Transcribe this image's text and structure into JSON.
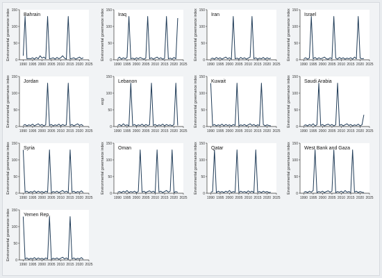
{
  "figure": {
    "background": "#f1f3f5",
    "panel_background": "#ffffff",
    "line_color": "#1f3b57",
    "axis_color": "#333333"
  },
  "chart_data": [
    {
      "type": "line",
      "title": "Bahrain",
      "ylabel": "Environmental governance index",
      "xlim": [
        1988,
        2025
      ],
      "ylim": [
        0,
        150
      ],
      "xticks": [
        1990,
        1995,
        2000,
        2005,
        2010,
        2015,
        2020,
        2025
      ],
      "yticks": [
        0,
        50,
        100,
        150
      ],
      "x": [
        1990,
        1991,
        1992,
        1993,
        1994,
        1995,
        1996,
        1997,
        1998,
        1999,
        2000,
        2001,
        2002,
        2003,
        2004,
        2005,
        2006,
        2007,
        2008,
        2009,
        2010,
        2011,
        2012,
        2013,
        2014,
        2015,
        2016,
        2017,
        2018,
        2019,
        2020,
        2021,
        2022
      ],
      "y": [
        12,
        130,
        3,
        4,
        3,
        6,
        2,
        7,
        3,
        12,
        5,
        8,
        3,
        130,
        3,
        4,
        6,
        2,
        7,
        3,
        6,
        12,
        5,
        2,
        130,
        3,
        4,
        6,
        2,
        5,
        8,
        3,
        6
      ]
    },
    {
      "type": "line",
      "title": "Iraq",
      "ylabel": "Environmental governance index",
      "xlim": [
        1988,
        2025
      ],
      "ylim": [
        0,
        150
      ],
      "xticks": [
        1990,
        1995,
        2000,
        2005,
        2010,
        2015,
        2020,
        2025
      ],
      "yticks": [
        0,
        50,
        100,
        150
      ],
      "x": [
        1990,
        1991,
        1992,
        1993,
        1994,
        1995,
        1996,
        1997,
        1998,
        1999,
        2000,
        2001,
        2002,
        2003,
        2004,
        2005,
        2006,
        2007,
        2008,
        2009,
        2010,
        2011,
        2012,
        2013,
        2014,
        2015,
        2016,
        2017,
        2018,
        2019,
        2020,
        2021,
        2022
      ],
      "y": [
        3,
        8,
        2,
        6,
        3,
        7,
        130,
        3,
        5,
        2,
        6,
        3,
        7,
        4,
        2,
        5,
        130,
        3,
        6,
        2,
        5,
        8,
        3,
        6,
        2,
        4,
        130,
        3,
        5,
        2,
        7,
        3,
        125
      ]
    },
    {
      "type": "line",
      "title": "Iran",
      "ylabel": "Environmental governance index",
      "xlim": [
        1988,
        2025
      ],
      "ylim": [
        0,
        150
      ],
      "xticks": [
        1990,
        1995,
        2000,
        2005,
        2010,
        2015,
        2020,
        2025
      ],
      "yticks": [
        0,
        50,
        100,
        150
      ],
      "x": [
        1990,
        1991,
        1992,
        1993,
        1994,
        1995,
        1996,
        1997,
        1998,
        1999,
        2000,
        2001,
        2002,
        2003,
        2004,
        2005,
        2006,
        2007,
        2008,
        2009,
        2010,
        2011,
        2012,
        2013,
        2014,
        2015,
        2016,
        2017,
        2018,
        2019,
        2020,
        2021,
        2022
      ],
      "y": [
        3,
        5,
        2,
        7,
        3,
        6,
        2,
        5,
        8,
        3,
        6,
        2,
        130,
        3,
        5,
        2,
        7,
        3,
        6,
        2,
        5,
        8,
        130,
        3,
        6,
        2,
        5,
        3,
        7,
        2,
        6,
        3,
        5
      ]
    },
    {
      "type": "line",
      "title": "Israel",
      "ylabel": "Environmental governance index",
      "xlim": [
        1988,
        2025
      ],
      "ylim": [
        0,
        150
      ],
      "xticks": [
        1990,
        1995,
        2000,
        2005,
        2010,
        2015,
        2020,
        2025
      ],
      "yticks": [
        0,
        50,
        100,
        150
      ],
      "x": [
        1990,
        1991,
        1992,
        1993,
        1994,
        1995,
        1996,
        1997,
        1998,
        1999,
        2000,
        2001,
        2002,
        2003,
        2004,
        2005,
        2006,
        2007,
        2008,
        2009,
        2010,
        2011,
        2012,
        2013,
        2014,
        2015,
        2016,
        2017,
        2018,
        2019,
        2020,
        2021,
        2022
      ],
      "y": [
        3,
        6,
        2,
        5,
        130,
        3,
        7,
        2,
        6,
        3,
        5,
        8,
        3,
        2,
        6,
        3,
        130,
        5,
        2,
        7,
        3,
        6,
        2,
        5,
        3,
        6,
        2,
        8,
        3,
        130,
        5,
        3,
        4
      ]
    },
    {
      "type": "line",
      "title": "Jordan",
      "ylabel": "Environmental governance index",
      "xlim": [
        1988,
        2025
      ],
      "ylim": [
        0,
        150
      ],
      "xticks": [
        1990,
        1995,
        2000,
        2005,
        2010,
        2015,
        2020,
        2025
      ],
      "yticks": [
        0,
        50,
        100,
        150
      ],
      "x": [
        1990,
        1991,
        1992,
        1993,
        1994,
        1995,
        1996,
        1997,
        1998,
        1999,
        2000,
        2001,
        2002,
        2003,
        2004,
        2005,
        2006,
        2007,
        2008,
        2009,
        2010,
        2011,
        2012,
        2013,
        2014,
        2015,
        2016,
        2017,
        2018,
        2019,
        2020,
        2021,
        2022
      ],
      "y": [
        3,
        6,
        2,
        5,
        3,
        7,
        2,
        5,
        8,
        3,
        6,
        2,
        5,
        130,
        3,
        6,
        2,
        5,
        3,
        7,
        2,
        6,
        3,
        5,
        130,
        3,
        6,
        2,
        5,
        8,
        3,
        6,
        2
      ]
    },
    {
      "type": "line",
      "title": "Lebanon",
      "ylabel": "eogi",
      "xlim": [
        1988,
        2025
      ],
      "ylim": [
        0,
        150
      ],
      "xticks": [
        1990,
        1995,
        2000,
        2005,
        2010,
        2015,
        2020,
        2025
      ],
      "yticks": [
        0,
        50,
        100,
        150
      ],
      "x": [
        1990,
        1991,
        1992,
        1993,
        1994,
        1995,
        1996,
        1997,
        1998,
        1999,
        2000,
        2001,
        2002,
        2003,
        2004,
        2005,
        2006,
        2007,
        2008,
        2009,
        2010,
        2011,
        2012,
        2013,
        2014,
        2015,
        2016,
        2017,
        2018,
        2019,
        2020,
        2021,
        2022
      ],
      "y": [
        3,
        6,
        2,
        8,
        3,
        5,
        2,
        130,
        3,
        6,
        2,
        5,
        3,
        7,
        2,
        6,
        3,
        5,
        130,
        3,
        6,
        2,
        5,
        3,
        7,
        2,
        6,
        3,
        5,
        2,
        6,
        130,
        3
      ]
    },
    {
      "type": "line",
      "title": "Kuwait",
      "ylabel": "Environmental governance index",
      "xlim": [
        1988,
        2025
      ],
      "ylim": [
        0,
        150
      ],
      "xticks": [
        1990,
        1995,
        2000,
        2005,
        2010,
        2015,
        2020,
        2025
      ],
      "yticks": [
        0,
        50,
        100,
        150
      ],
      "x": [
        1990,
        1991,
        1992,
        1993,
        1994,
        1995,
        1996,
        1997,
        1998,
        1999,
        2000,
        2001,
        2002,
        2003,
        2004,
        2005,
        2006,
        2007,
        2008,
        2009,
        2010,
        2011,
        2012,
        2013,
        2014,
        2015,
        2016,
        2017,
        2018,
        2019,
        2020,
        2021,
        2022
      ],
      "y": [
        130,
        3,
        6,
        2,
        5,
        3,
        7,
        2,
        6,
        3,
        5,
        2,
        6,
        3,
        130,
        2,
        5,
        3,
        6,
        2,
        5,
        8,
        3,
        6,
        2,
        5,
        3,
        130,
        6,
        2,
        5,
        3,
        2
      ]
    },
    {
      "type": "line",
      "title": "Saudi Arabia",
      "ylabel": "Environmental governance index",
      "xlim": [
        1988,
        2025
      ],
      "ylim": [
        0,
        150
      ],
      "xticks": [
        1990,
        1995,
        2000,
        2005,
        2010,
        2015,
        2020,
        2025
      ],
      "yticks": [
        0,
        50,
        100,
        150
      ],
      "x": [
        1990,
        1991,
        1992,
        1993,
        1994,
        1995,
        1996,
        1997,
        1998,
        1999,
        2000,
        2001,
        2002,
        2003,
        2004,
        2005,
        2006,
        2007,
        2008,
        2009,
        2010,
        2011,
        2012,
        2013,
        2014,
        2015,
        2016,
        2017,
        2018,
        2019,
        2020,
        2021,
        2022
      ],
      "y": [
        3,
        5,
        2,
        6,
        3,
        8,
        2,
        5,
        130,
        3,
        6,
        2,
        5,
        7,
        3,
        6,
        2,
        5,
        130,
        3,
        6,
        2,
        5,
        8,
        3,
        6,
        2,
        5,
        3,
        7,
        2,
        5,
        35
      ]
    },
    {
      "type": "line",
      "title": "Syria",
      "ylabel": "Environmental governance index",
      "xlim": [
        1988,
        2025
      ],
      "ylim": [
        0,
        150
      ],
      "xticks": [
        1990,
        1995,
        2000,
        2005,
        2010,
        2015,
        2020,
        2025
      ],
      "yticks": [
        0,
        50,
        100,
        150
      ],
      "x": [
        1990,
        1991,
        1992,
        1993,
        1994,
        1995,
        1996,
        1997,
        1998,
        1999,
        2000,
        2001,
        2002,
        2003,
        2004,
        2005,
        2006,
        2007,
        2008,
        2009,
        2010,
        2011,
        2012,
        2013,
        2014,
        2015,
        2016,
        2017,
        2018,
        2019,
        2020,
        2021,
        2022
      ],
      "y": [
        130,
        3,
        6,
        2,
        5,
        3,
        7,
        2,
        6,
        3,
        5,
        2,
        6,
        3,
        130,
        2,
        5,
        3,
        6,
        2,
        5,
        8,
        3,
        6,
        2,
        130,
        3,
        6,
        2,
        5,
        3,
        7,
        2
      ]
    },
    {
      "type": "line",
      "title": "Oman",
      "ylabel": "Environmental governance index",
      "xlim": [
        1988,
        2025
      ],
      "ylim": [
        0,
        150
      ],
      "xticks": [
        1990,
        1995,
        2000,
        2005,
        2010,
        2015,
        2020,
        2025
      ],
      "yticks": [
        0,
        50,
        100,
        150
      ],
      "x": [
        1990,
        1991,
        1992,
        1993,
        1994,
        1995,
        1996,
        1997,
        1998,
        1999,
        2000,
        2001,
        2002,
        2003,
        2004,
        2005,
        2006,
        2007,
        2008,
        2009,
        2010,
        2011,
        2012,
        2013,
        2014,
        2015,
        2016,
        2017,
        2018,
        2019,
        2020,
        2021,
        2022
      ],
      "y": [
        3,
        5,
        2,
        6,
        3,
        8,
        2,
        5,
        3,
        6,
        2,
        5,
        130,
        3,
        6,
        2,
        5,
        7,
        3,
        6,
        2,
        130,
        3,
        6,
        2,
        5,
        8,
        3,
        6,
        130,
        2,
        5,
        3
      ]
    },
    {
      "type": "line",
      "title": "Qatar",
      "ylabel": "Environmental governance index",
      "xlim": [
        1988,
        2025
      ],
      "ylim": [
        0,
        150
      ],
      "xticks": [
        1990,
        1995,
        2000,
        2005,
        2010,
        2015,
        2020,
        2025
      ],
      "yticks": [
        0,
        50,
        100,
        150
      ],
      "x": [
        1990,
        1991,
        1992,
        1993,
        1994,
        1995,
        1996,
        1997,
        1998,
        1999,
        2000,
        2001,
        2002,
        2003,
        2004,
        2005,
        2006,
        2007,
        2008,
        2009,
        2010,
        2011,
        2012,
        2013,
        2014,
        2015,
        2016,
        2017,
        2018,
        2019,
        2020,
        2021,
        2022
      ],
      "y": [
        3,
        5,
        130,
        2,
        6,
        3,
        5,
        2,
        6,
        3,
        8,
        2,
        5,
        3,
        130,
        2,
        6,
        3,
        5,
        2,
        7,
        3,
        6,
        2,
        130,
        3,
        5,
        2,
        6,
        3,
        5,
        2,
        3
      ]
    },
    {
      "type": "line",
      "title": "West Bank and Gaza",
      "ylabel": "Environmental governance index",
      "xlim": [
        1988,
        2025
      ],
      "ylim": [
        0,
        150
      ],
      "xticks": [
        1990,
        1995,
        2000,
        2005,
        2010,
        2015,
        2020,
        2025
      ],
      "yticks": [
        0,
        50,
        100,
        150
      ],
      "x": [
        1990,
        1991,
        1992,
        1993,
        1994,
        1995,
        1996,
        1997,
        1998,
        1999,
        2000,
        2001,
        2002,
        2003,
        2004,
        2005,
        2006,
        2007,
        2008,
        2009,
        2010,
        2011,
        2012,
        2013,
        2014,
        2015,
        2016,
        2017,
        2018,
        2019,
        2020,
        2021,
        2022
      ],
      "y": [
        3,
        5,
        2,
        6,
        3,
        8,
        130,
        2,
        5,
        3,
        6,
        2,
        5,
        7,
        3,
        6,
        130,
        2,
        5,
        3,
        6,
        2,
        8,
        3,
        5,
        2,
        130,
        3,
        6,
        2,
        5,
        3,
        2
      ]
    },
    {
      "type": "line",
      "title": "Yemen Rep.",
      "ylabel": "Environmental governance index",
      "xlim": [
        1988,
        2025
      ],
      "ylim": [
        0,
        150
      ],
      "xticks": [
        1990,
        1995,
        2000,
        2005,
        2010,
        2015,
        2020,
        2025
      ],
      "yticks": [
        0,
        50,
        100,
        150
      ],
      "x": [
        1990,
        1991,
        1992,
        1993,
        1994,
        1995,
        1996,
        1997,
        1998,
        1999,
        2000,
        2001,
        2002,
        2003,
        2004,
        2005,
        2006,
        2007,
        2008,
        2009,
        2010,
        2011,
        2012,
        2013,
        2014,
        2015,
        2016,
        2017,
        2018,
        2019,
        2020,
        2021,
        2022
      ],
      "y": [
        130,
        3,
        6,
        2,
        5,
        3,
        7,
        2,
        6,
        3,
        5,
        2,
        6,
        3,
        130,
        2,
        5,
        3,
        6,
        2,
        5,
        8,
        3,
        6,
        2,
        130,
        3,
        6,
        2,
        5,
        3,
        7,
        2
      ]
    }
  ]
}
